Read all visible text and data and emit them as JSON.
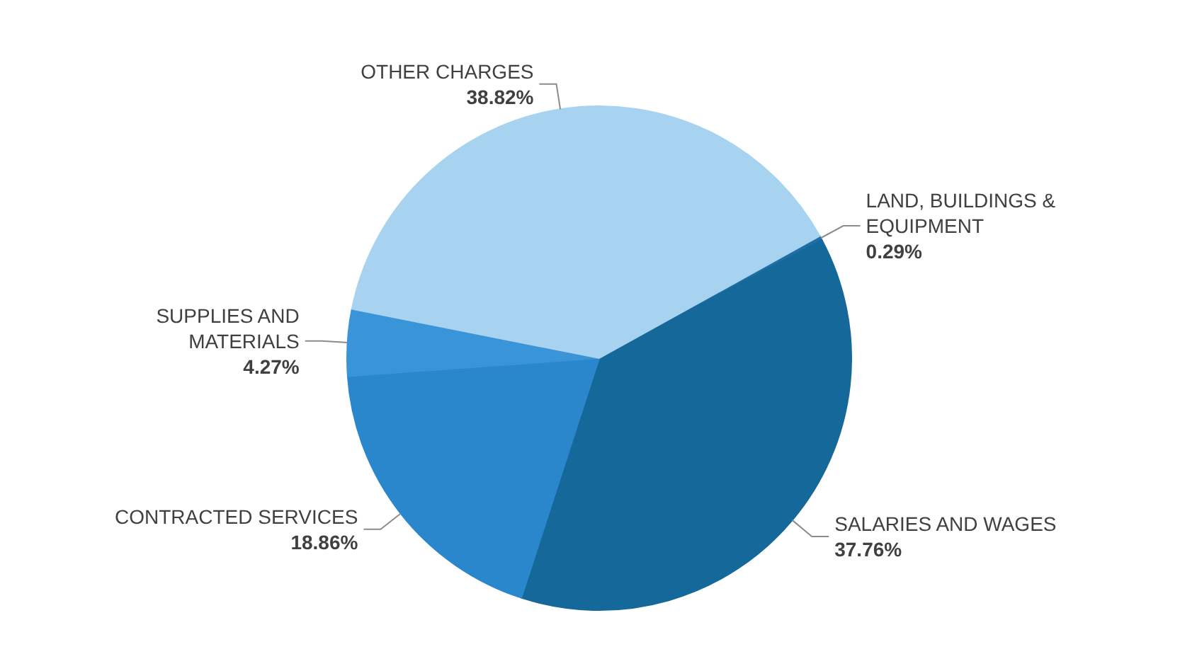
{
  "chart_data": {
    "type": "pie",
    "categories": [
      "LAND, BUILDINGS & EQUIPMENT",
      "SALARIES AND WAGES",
      "CONTRACTED SERVICES",
      "SUPPLIES AND MATERIALS",
      "OTHER CHARGES"
    ],
    "values": [
      0.29,
      37.76,
      18.86,
      4.27,
      38.82
    ],
    "value_labels": [
      "0.29%",
      "37.76%",
      "18.86%",
      "4.27%",
      "38.82%"
    ],
    "colors": [
      "#1f6fa6",
      "#15699a",
      "#2b87cc",
      "#3a94d8",
      "#a8d3f0"
    ],
    "legend": false
  }
}
